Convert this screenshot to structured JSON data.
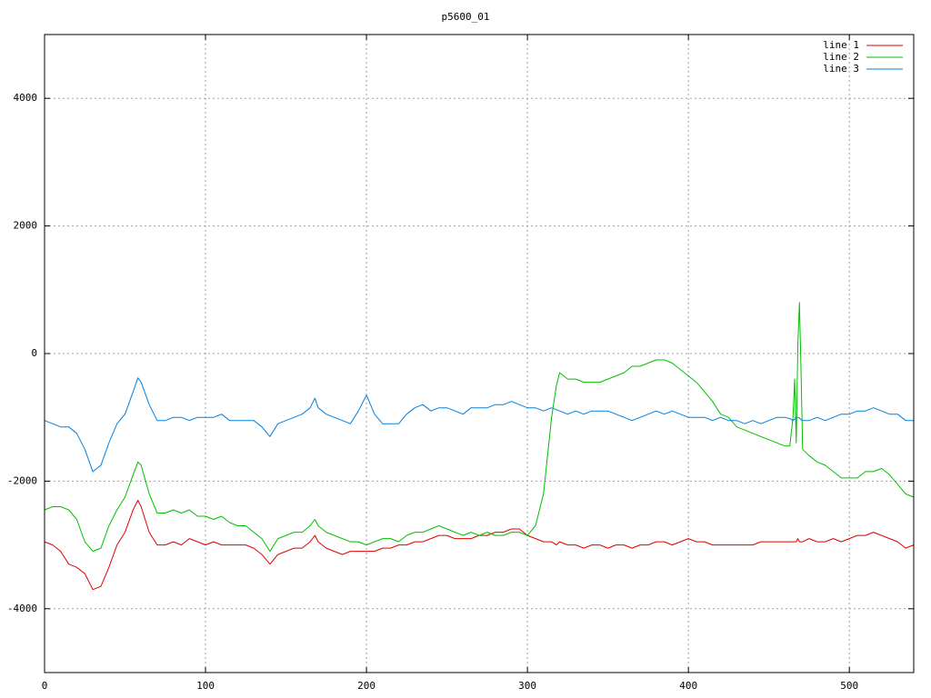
{
  "chart_data": {
    "type": "line",
    "title": "p5600_01",
    "x": [
      0,
      5,
      10,
      15,
      20,
      25,
      30,
      35,
      40,
      45,
      50,
      55,
      58,
      60,
      65,
      70,
      75,
      80,
      85,
      90,
      95,
      100,
      105,
      110,
      115,
      120,
      125,
      130,
      135,
      140,
      145,
      150,
      155,
      160,
      165,
      168,
      170,
      175,
      180,
      185,
      190,
      195,
      200,
      205,
      210,
      215,
      220,
      225,
      230,
      235,
      240,
      245,
      250,
      255,
      260,
      265,
      270,
      275,
      280,
      285,
      290,
      295,
      300,
      305,
      310,
      315,
      318,
      320,
      325,
      330,
      335,
      340,
      345,
      350,
      355,
      360,
      365,
      370,
      375,
      380,
      385,
      390,
      395,
      400,
      405,
      410,
      415,
      420,
      425,
      430,
      435,
      440,
      445,
      450,
      455,
      460,
      463,
      465,
      466,
      467,
      468,
      469,
      470,
      471,
      475,
      480,
      485,
      490,
      495,
      500,
      505,
      510,
      515,
      520,
      525,
      530,
      535,
      540
    ],
    "series": [
      {
        "name": "line 1",
        "color": "#e00000",
        "values": [
          -2950,
          -3000,
          -3100,
          -3300,
          -3350,
          -3450,
          -3700,
          -3650,
          -3350,
          -3000,
          -2800,
          -2450,
          -2300,
          -2400,
          -2800,
          -3000,
          -3000,
          -2950,
          -3000,
          -2900,
          -2950,
          -3000,
          -2950,
          -3000,
          -3000,
          -3000,
          -3000,
          -3050,
          -3150,
          -3300,
          -3150,
          -3100,
          -3050,
          -3050,
          -2950,
          -2850,
          -2950,
          -3050,
          -3100,
          -3150,
          -3100,
          -3100,
          -3100,
          -3100,
          -3050,
          -3050,
          -3000,
          -3000,
          -2950,
          -2950,
          -2900,
          -2850,
          -2850,
          -2900,
          -2900,
          -2900,
          -2850,
          -2850,
          -2800,
          -2800,
          -2750,
          -2750,
          -2850,
          -2900,
          -2950,
          -2950,
          -3000,
          -2950,
          -3000,
          -3000,
          -3050,
          -3000,
          -3000,
          -3050,
          -3000,
          -3000,
          -3050,
          -3000,
          -3000,
          -2950,
          -2950,
          -3000,
          -2950,
          -2900,
          -2950,
          -2950,
          -3000,
          -3000,
          -3000,
          -3000,
          -3000,
          -3000,
          -2950,
          -2950,
          -2950,
          -2950,
          -2950,
          -2950,
          -2950,
          -2950,
          -2900,
          -2950,
          -2950,
          -2950,
          -2900,
          -2950,
          -2950,
          -2900,
          -2950,
          -2900,
          -2850,
          -2850,
          -2800,
          -2850,
          -2900,
          -2950,
          -3050,
          -3000
        ]
      },
      {
        "name": "line 2",
        "color": "#00c000",
        "values": [
          -2450,
          -2400,
          -2400,
          -2450,
          -2600,
          -2950,
          -3100,
          -3050,
          -2700,
          -2450,
          -2250,
          -1900,
          -1700,
          -1750,
          -2200,
          -2500,
          -2500,
          -2450,
          -2500,
          -2450,
          -2550,
          -2550,
          -2600,
          -2550,
          -2650,
          -2700,
          -2700,
          -2800,
          -2900,
          -3100,
          -2900,
          -2850,
          -2800,
          -2800,
          -2700,
          -2600,
          -2700,
          -2800,
          -2850,
          -2900,
          -2950,
          -2950,
          -3000,
          -2950,
          -2900,
          -2900,
          -2950,
          -2850,
          -2800,
          -2800,
          -2750,
          -2700,
          -2750,
          -2800,
          -2850,
          -2800,
          -2850,
          -2800,
          -2850,
          -2850,
          -2800,
          -2800,
          -2850,
          -2700,
          -2200,
          -1000,
          -500,
          -300,
          -400,
          -400,
          -450,
          -450,
          -450,
          -400,
          -350,
          -300,
          -200,
          -200,
          -150,
          -100,
          -100,
          -150,
          -250,
          -350,
          -450,
          -600,
          -750,
          -950,
          -1000,
          -1150,
          -1200,
          -1250,
          -1300,
          -1350,
          -1400,
          -1450,
          -1450,
          -1000,
          -400,
          -1400,
          100,
          800,
          -300,
          -1500,
          -1600,
          -1700,
          -1750,
          -1850,
          -1950,
          -1950,
          -1950,
          -1850,
          -1850,
          -1800,
          -1900,
          -2050,
          -2200,
          -2250
        ]
      },
      {
        "name": "line 3",
        "color": "#0080e0",
        "values": [
          -1050,
          -1100,
          -1150,
          -1150,
          -1250,
          -1500,
          -1850,
          -1750,
          -1400,
          -1100,
          -950,
          -600,
          -380,
          -450,
          -800,
          -1050,
          -1050,
          -1000,
          -1000,
          -1050,
          -1000,
          -1000,
          -1000,
          -950,
          -1050,
          -1050,
          -1050,
          -1050,
          -1150,
          -1300,
          -1100,
          -1050,
          -1000,
          -950,
          -850,
          -700,
          -850,
          -950,
          -1000,
          -1050,
          -1100,
          -900,
          -650,
          -950,
          -1100,
          -1100,
          -1100,
          -950,
          -850,
          -800,
          -900,
          -850,
          -850,
          -900,
          -950,
          -850,
          -850,
          -850,
          -800,
          -800,
          -750,
          -800,
          -850,
          -850,
          -900,
          -850,
          -880,
          -900,
          -950,
          -900,
          -950,
          -900,
          -900,
          -900,
          -950,
          -1000,
          -1050,
          -1000,
          -950,
          -900,
          -950,
          -900,
          -950,
          -1000,
          -1000,
          -1000,
          -1050,
          -1000,
          -1050,
          -1050,
          -1100,
          -1050,
          -1100,
          -1050,
          -1000,
          -1000,
          -1020,
          -1050,
          -1030,
          -1000,
          -1000,
          -1010,
          -1040,
          -1050,
          -1050,
          -1000,
          -1050,
          -1000,
          -950,
          -950,
          -900,
          -900,
          -850,
          -900,
          -950,
          -950,
          -1050,
          -1050
        ]
      }
    ],
    "xlim": [
      0,
      540
    ],
    "ylim": [
      -5000,
      5000
    ],
    "xticks": [
      0,
      100,
      200,
      300,
      400,
      500
    ],
    "yticks": [
      -4000,
      -2000,
      0,
      2000,
      4000
    ],
    "grid": true,
    "legend": "top-right"
  }
}
